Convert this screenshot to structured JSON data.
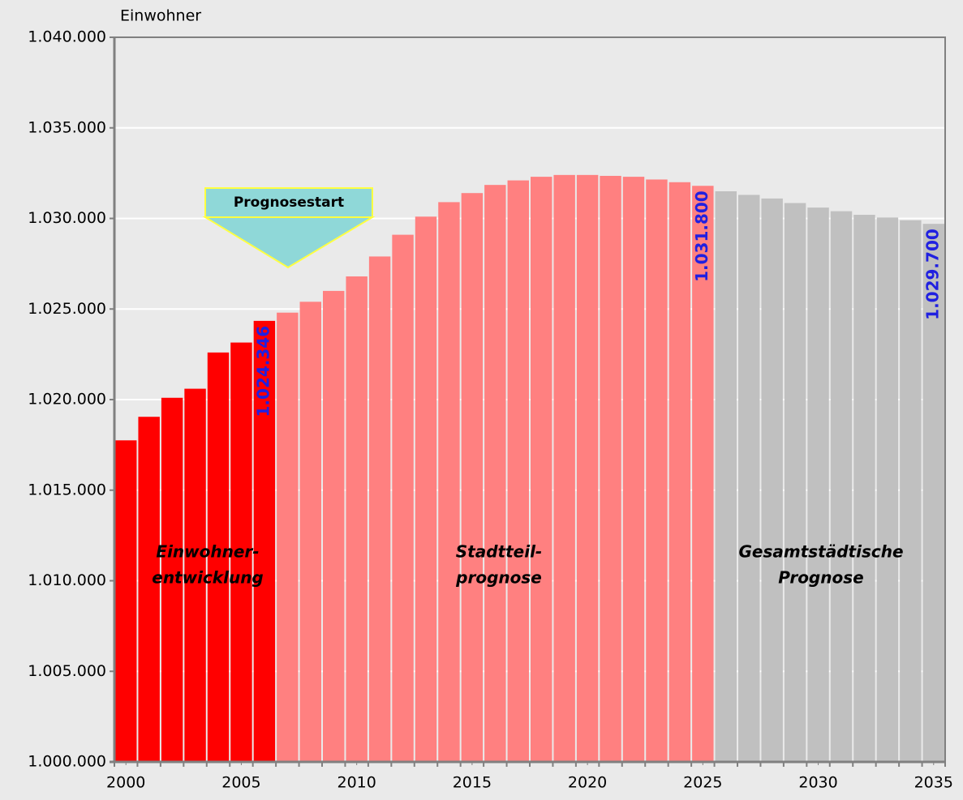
{
  "chart_data": {
    "type": "bar",
    "y_label": "Einwohner",
    "x": [
      2000,
      2001,
      2002,
      2003,
      2004,
      2005,
      2006,
      2007,
      2008,
      2009,
      2010,
      2011,
      2012,
      2013,
      2014,
      2015,
      2016,
      2017,
      2018,
      2019,
      2020,
      2021,
      2022,
      2023,
      2024,
      2025,
      2026,
      2027,
      2028,
      2029,
      2030,
      2031,
      2032,
      2033,
      2034,
      2035
    ],
    "series": [
      {
        "color": "#ff0000",
        "values": [
          1017750,
          1019050,
          1020100,
          1020600,
          1022600,
          1023150,
          1024346,
          null,
          null,
          null,
          null,
          null,
          null,
          null,
          null,
          null,
          null,
          null,
          null,
          null,
          null,
          null,
          null,
          null,
          null,
          null,
          null,
          null,
          null,
          null,
          null,
          null,
          null,
          null,
          null,
          null
        ],
        "value_labels": [
          null,
          null,
          null,
          null,
          null,
          null,
          "1.024.346",
          null,
          null,
          null,
          null,
          null,
          null,
          null,
          null,
          null,
          null,
          null,
          null,
          null,
          null,
          null,
          null,
          null,
          null,
          null,
          null,
          null,
          null,
          null,
          null,
          null,
          null,
          null,
          null,
          null
        ]
      },
      {
        "color": "#ff8080",
        "values": [
          null,
          null,
          null,
          null,
          null,
          null,
          null,
          1024800,
          1025400,
          1026000,
          1026800,
          1027900,
          1029100,
          1030100,
          1030900,
          1031400,
          1031850,
          1032100,
          1032300,
          1032400,
          1032400,
          1032350,
          1032300,
          1032150,
          1032000,
          1031800,
          null,
          null,
          null,
          null,
          null,
          null,
          null,
          null,
          null,
          null
        ],
        "value_labels": [
          null,
          null,
          null,
          null,
          null,
          null,
          null,
          null,
          null,
          null,
          null,
          null,
          null,
          null,
          null,
          null,
          null,
          null,
          null,
          null,
          null,
          null,
          null,
          null,
          null,
          "1.031.800",
          null,
          null,
          null,
          null,
          null,
          null,
          null,
          null,
          null,
          null
        ]
      },
      {
        "color": "#c0c0c0",
        "values": [
          null,
          null,
          null,
          null,
          null,
          null,
          null,
          null,
          null,
          null,
          null,
          null,
          null,
          null,
          null,
          null,
          null,
          null,
          null,
          null,
          null,
          null,
          null,
          null,
          null,
          null,
          1031500,
          1031300,
          1031100,
          1030850,
          1030600,
          1030400,
          1030200,
          1030050,
          1029900,
          1029700
        ],
        "value_labels": [
          null,
          null,
          null,
          null,
          null,
          null,
          null,
          null,
          null,
          null,
          null,
          null,
          null,
          null,
          null,
          null,
          null,
          null,
          null,
          null,
          null,
          null,
          null,
          null,
          null,
          null,
          null,
          null,
          null,
          null,
          null,
          null,
          null,
          null,
          null,
          "1.029.700"
        ]
      }
    ],
    "xlim": [
      1999.5,
      2035.5
    ],
    "xticks": [
      2000,
      2005,
      2010,
      2015,
      2020,
      2025,
      2030,
      2035
    ],
    "ylim": [
      1000000,
      1040000
    ],
    "yticks": [
      {
        "value": 1000000,
        "label": "1.000.000"
      },
      {
        "value": 1005000,
        "label": "1.005.000"
      },
      {
        "value": 1010000,
        "label": "1.010.000"
      },
      {
        "value": 1015000,
        "label": "1.015.000"
      },
      {
        "value": 1020000,
        "label": "1.020.000"
      },
      {
        "value": 1025000,
        "label": "1.025.000"
      },
      {
        "value": 1030000,
        "label": "1.030.000"
      },
      {
        "value": 1035000,
        "label": "1.035.000"
      },
      {
        "value": 1040000,
        "label": "1.040.000"
      }
    ],
    "grid": true,
    "annotations": [
      {
        "lines": [
          "Einwohner-",
          "entwicklung"
        ]
      },
      {
        "lines": [
          "Stadtteil-",
          "prognose"
        ]
      },
      {
        "lines": [
          "Gesamtstädtische",
          "Prognose"
        ]
      },
      {
        "text": "Prognosestart"
      }
    ]
  }
}
